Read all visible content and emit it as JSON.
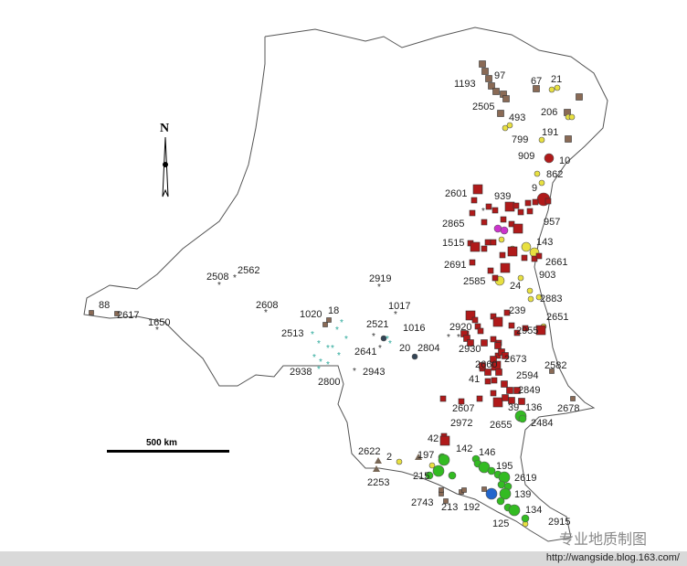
{
  "map": {
    "north_label": "N",
    "scale_label": "500 km",
    "labels": [
      "1193",
      "97",
      "67",
      "21",
      "2505",
      "493",
      "206",
      "799",
      "191",
      "909",
      "10",
      "862",
      "9",
      "2601",
      "939",
      "2865",
      "957",
      "1515",
      "143",
      "2691",
      "2661",
      "2585",
      "24",
      "903",
      "2883",
      "239",
      "2651",
      "2955",
      "2919",
      "2508",
      "2562",
      "2608",
      "88",
      "2617",
      "1650",
      "1020",
      "18",
      "1017",
      "2521",
      "1016",
      "2513",
      "2641",
      "20",
      "2804",
      "2920",
      "2930",
      "2938",
      "2800",
      "2943",
      "2660",
      "2673",
      "2582",
      "41",
      "2594",
      "2849",
      "2607",
      "39",
      "136",
      "2678",
      "2655",
      "2484",
      "2972",
      "42",
      "142",
      "146",
      "2622",
      "2",
      "197",
      "195",
      "2253",
      "215",
      "2619",
      "139",
      "2743",
      "213",
      "192",
      "134",
      "125",
      "2915"
    ],
    "colors": {
      "red": "#b01a1a",
      "brown": "#8a6a55",
      "yellow": "#e8e040",
      "green": "#33bb22",
      "teal": "#2aa89a",
      "blue": "#2266cc",
      "boundary": "#555555"
    }
  },
  "watermark": "专业地质制图",
  "footer_url": "http://wangside.blog.163.com/"
}
